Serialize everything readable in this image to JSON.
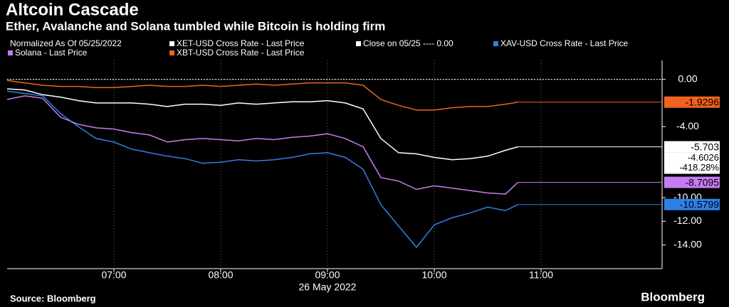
{
  "chart_data": {
    "type": "line",
    "title": "Altcoin Cascade",
    "subtitle": "Ether, Avalanche and Solana tumbled while Bitcoin is holding firm",
    "legend_title": "Normalized As Of 05/25/2022",
    "x": [
      "06:00",
      "06:10",
      "06:20",
      "06:30",
      "06:40",
      "06:50",
      "07:00",
      "07:10",
      "07:20",
      "07:30",
      "07:40",
      "07:50",
      "08:00",
      "08:10",
      "08:20",
      "08:30",
      "08:40",
      "08:50",
      "09:00",
      "09:10",
      "09:20",
      "09:30",
      "09:40",
      "09:50",
      "10:00",
      "10:10",
      "10:20",
      "10:30",
      "10:40",
      "10:47"
    ],
    "xlim": [
      "06:00",
      "12:08"
    ],
    "xticks": [
      "07:00",
      "08:00",
      "09:00",
      "10:00",
      "11:00"
    ],
    "x_label": "26 May 2022",
    "ylim": [
      -16,
      1.6
    ],
    "yticks": [
      {
        "value": 0,
        "label": "0.00"
      },
      {
        "value": -4,
        "label": "-4.00"
      },
      {
        "value": -10,
        "label": "-10.00"
      },
      {
        "value": -12,
        "label": "-12.00"
      },
      {
        "value": -14,
        "label": "-14.00"
      }
    ],
    "grid": true,
    "reference_line": {
      "name": "Close on 05/25 ---- 0.00",
      "value": 0,
      "color": "#ffffff"
    },
    "series": [
      {
        "name": "XET-USD Cross Rate - Last Price",
        "color": "#ffffff",
        "values": [
          -0.8,
          -0.9,
          -1.3,
          -1.5,
          -1.8,
          -2.0,
          -2.0,
          -2.0,
          -2.1,
          -2.3,
          -2.1,
          -2.1,
          -2.2,
          -2.0,
          -2.1,
          -2.0,
          -1.9,
          -1.9,
          -1.8,
          -2.0,
          -2.5,
          -5.0,
          -6.2,
          -6.3,
          -6.6,
          -6.8,
          -6.7,
          -6.5,
          -6.0,
          -5.703
        ],
        "value_label": "-5.703"
      },
      {
        "name": "XAV-USD Cross Rate - Last Price",
        "color": "#2f80e6",
        "values": [
          -1.0,
          -1.2,
          -1.4,
          -2.9,
          -4.0,
          -5.0,
          -5.3,
          -5.9,
          -6.2,
          -6.5,
          -6.7,
          -7.1,
          -7.0,
          -6.8,
          -6.9,
          -6.8,
          -6.6,
          -6.3,
          -6.2,
          -6.6,
          -7.6,
          -10.6,
          -12.4,
          -14.2,
          -12.3,
          -11.7,
          -11.3,
          -10.8,
          -11.1,
          -10.5799
        ],
        "value_label": "-10.5799"
      },
      {
        "name": "Solana - Last Price",
        "color": "#c67cf0",
        "values": [
          -1.7,
          -1.4,
          -1.6,
          -3.2,
          -3.8,
          -4.1,
          -4.2,
          -4.5,
          -4.7,
          -5.3,
          -5.1,
          -5.0,
          -5.1,
          -5.2,
          -5.0,
          -5.1,
          -4.9,
          -4.8,
          -4.6,
          -5.0,
          -5.7,
          -8.3,
          -8.6,
          -9.3,
          -9.0,
          -9.2,
          -9.4,
          -9.6,
          -9.7,
          -8.7095
        ],
        "value_label": "-8.7095"
      },
      {
        "name": "XBT-USD Cross Rate - Last Price",
        "color": "#f0621e",
        "values": [
          -0.1,
          -0.3,
          -0.5,
          -0.6,
          -0.6,
          -0.7,
          -0.7,
          -0.6,
          -0.5,
          -0.6,
          -0.6,
          -0.5,
          -0.6,
          -0.5,
          -0.4,
          -0.5,
          -0.4,
          -0.3,
          -0.3,
          -0.3,
          -0.5,
          -1.7,
          -2.2,
          -2.6,
          -2.6,
          -2.4,
          -2.3,
          -2.3,
          -2.1,
          -1.9296
        ],
        "value_label": "-1.9296"
      }
    ],
    "annotations": [
      "-4.6026",
      "-418.28%"
    ],
    "source": "Source: Bloomberg",
    "brand": "Bloomberg"
  }
}
